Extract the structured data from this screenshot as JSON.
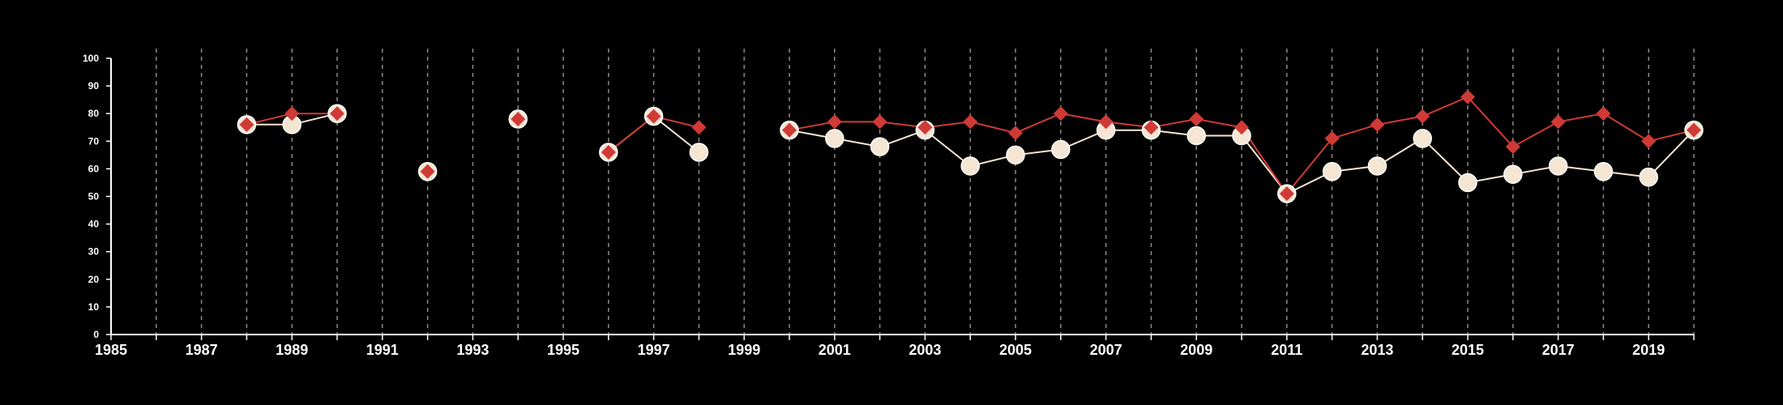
{
  "chart_data": {
    "type": "line",
    "title": "",
    "xlabel": "",
    "ylabel": "",
    "xlim": [
      1985,
      2020
    ],
    "ylim": [
      0,
      100
    ],
    "y_ticks": [
      0,
      10,
      20,
      30,
      40,
      50,
      60,
      70,
      80,
      90,
      100
    ],
    "x_tick_labels": [
      1985,
      1987,
      1989,
      1991,
      1993,
      1995,
      1997,
      1999,
      2001,
      2003,
      2005,
      2007,
      2009,
      2011,
      2013,
      2015,
      2017,
      2019
    ],
    "grid": "vertical dashed lines at every year",
    "legend": "none",
    "series": [
      {
        "color": "#f5e6d3",
        "marker": "circle",
        "points": [
          [
            1988,
            76
          ],
          [
            1989,
            76
          ],
          [
            1990,
            80
          ],
          [
            1992,
            59
          ],
          [
            1994,
            78
          ],
          [
            1996,
            66
          ],
          [
            1997,
            79
          ],
          [
            1998,
            66
          ],
          [
            2000,
            74
          ],
          [
            2001,
            71
          ],
          [
            2002,
            68
          ],
          [
            2003,
            74
          ],
          [
            2004,
            61
          ],
          [
            2005,
            65
          ],
          [
            2006,
            67
          ],
          [
            2007,
            74
          ],
          [
            2008,
            74
          ],
          [
            2009,
            72
          ],
          [
            2010,
            72
          ],
          [
            2011,
            51
          ],
          [
            2012,
            59
          ],
          [
            2013,
            61
          ],
          [
            2014,
            71
          ],
          [
            2015,
            55
          ],
          [
            2016,
            58
          ],
          [
            2017,
            61
          ],
          [
            2018,
            59
          ],
          [
            2019,
            57
          ],
          [
            2020,
            74
          ]
        ]
      },
      {
        "color": "#d03a36",
        "marker": "diamond",
        "points": [
          [
            1988,
            76
          ],
          [
            1989,
            80
          ],
          [
            1990,
            80
          ],
          [
            1992,
            59
          ],
          [
            1994,
            78
          ],
          [
            1996,
            66
          ],
          [
            1997,
            79
          ],
          [
            1998,
            75
          ],
          [
            2000,
            74
          ],
          [
            2001,
            77
          ],
          [
            2002,
            77
          ],
          [
            2003,
            75
          ],
          [
            2004,
            77
          ],
          [
            2005,
            73
          ],
          [
            2006,
            80
          ],
          [
            2007,
            77
          ],
          [
            2008,
            75
          ],
          [
            2009,
            78
          ],
          [
            2010,
            75
          ],
          [
            2011,
            51
          ],
          [
            2012,
            71
          ],
          [
            2013,
            76
          ],
          [
            2014,
            79
          ],
          [
            2015,
            86
          ],
          [
            2016,
            68
          ],
          [
            2017,
            77
          ],
          [
            2018,
            80
          ],
          [
            2019,
            70
          ],
          [
            2020,
            74
          ]
        ]
      }
    ]
  }
}
